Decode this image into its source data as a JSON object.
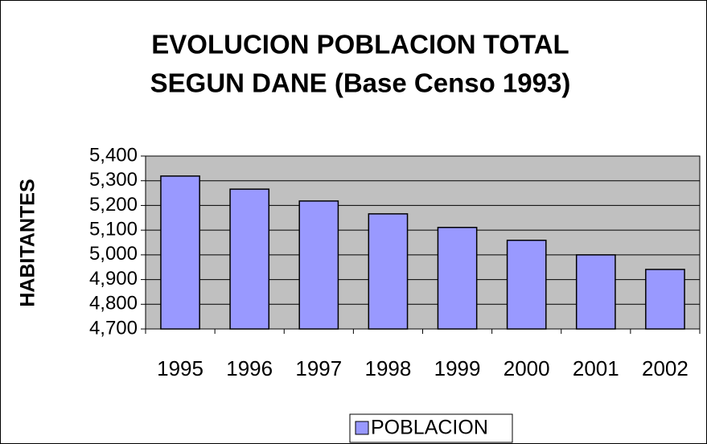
{
  "chart_data": {
    "type": "bar",
    "title": [
      "EVOLUCION POBLACION TOTAL",
      "SEGUN DANE (Base Censo 1993)"
    ],
    "y_label": "HABITANTES",
    "categories": [
      "1995",
      "1996",
      "1997",
      "1998",
      "1999",
      "2000",
      "2001",
      "2002"
    ],
    "series": [
      {
        "name": "POBLACION",
        "color": "#9999ff",
        "values": [
          5319,
          5266,
          5218,
          5166,
          5111,
          5059,
          5000,
          4941
        ]
      }
    ],
    "ylim": [
      4700,
      5400
    ],
    "yticks": [
      {
        "value": 4700,
        "label": "4,700"
      },
      {
        "value": 4800,
        "label": "4,800"
      },
      {
        "value": 4900,
        "label": "4,900"
      },
      {
        "value": 5000,
        "label": "5,000"
      },
      {
        "value": 5100,
        "label": "5,100"
      },
      {
        "value": 5200,
        "label": "5,200"
      },
      {
        "value": 5300,
        "label": "5,300"
      },
      {
        "value": 5400,
        "label": "5,400"
      }
    ],
    "grid": true,
    "legend": "bottom",
    "plot_background": "#c0c0c0"
  }
}
